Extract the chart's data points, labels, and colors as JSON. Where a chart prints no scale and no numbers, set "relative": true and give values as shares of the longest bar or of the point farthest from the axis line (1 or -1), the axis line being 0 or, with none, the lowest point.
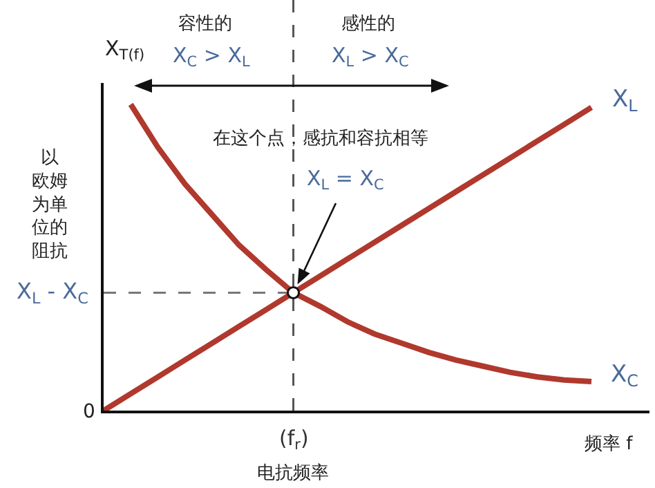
{
  "chart_data": {
    "type": "line",
    "relative": true,
    "legend": false,
    "grid": false,
    "marker": "none",
    "line_style": "solid",
    "ylabel": "X$_{T(f)}$",
    "xlabel": "频率 f",
    "categories": [
      null,
      null,
      null,
      null,
      null,
      null,
      null,
      null,
      null,
      null,
      null,
      null,
      null,
      null,
      null,
      null,
      null,
      null,
      null
    ],
    "series": [
      {
        "name": "X$_{L}$",
        "color": "#b0382d",
        "values": [
          0,
          0.055,
          0.11,
          0.165,
          0.22,
          0.275,
          0.33,
          0.385,
          0.44,
          0.495,
          0.55,
          0.605,
          0.66,
          0.715,
          0.77,
          0.825,
          0.88,
          0.935,
          0.99
        ]
      },
      {
        "name": "X$_{C}$",
        "color": "#b0382d",
        "values": [
          null,
          1,
          0.86,
          0.74,
          0.64,
          0.54,
          0.46,
          0.385,
          0.34,
          0.29,
          0.25,
          0.22,
          0.19,
          0.165,
          0.145,
          0.125,
          0.11,
          0.1,
          0.095
        ]
      }
    ],
    "ref_lines": [
      {
        "axis": "y",
        "value": 0.385,
        "label": "X$_{L}$ - X$_{C}$",
        "line_style": "dashed",
        "color": "#777777"
      }
    ],
    "annotations": [
      "容性的",
      "X$_{C}$ > X$_{L}$",
      "感性的",
      "X$_{L}$ > X$_{C}$",
      "在这个点，感抗和容抗相等",
      "X$_{L}$ = X$_{C}$",
      "以欧姆为单位的阻抗",
      "0",
      "电抗频率",
      "(f$_{r}$)"
    ]
  }
}
